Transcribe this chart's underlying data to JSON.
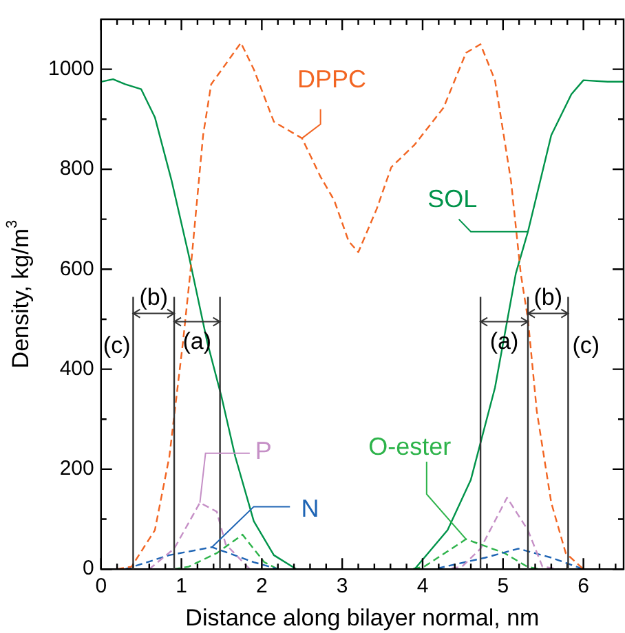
{
  "chart_data": {
    "type": "line",
    "xlabel": "Distance along bilayer normal, nm",
    "ylabel": "Density, kg/m$^{3}$",
    "xlim": [
      0,
      6.5
    ],
    "ylim": [
      0,
      1100
    ],
    "xticks": [
      0,
      {
        "value": 0.2,
        "label": null
      },
      {
        "value": 0.4,
        "label": null
      },
      {
        "value": 0.6,
        "label": null
      },
      {
        "value": 0.8,
        "label": null
      },
      1,
      {
        "value": 1.2,
        "label": null
      },
      {
        "value": 1.4,
        "label": null
      },
      {
        "value": 1.6,
        "label": null
      },
      {
        "value": 1.8,
        "label": null
      },
      2,
      {
        "value": 2.2,
        "label": null
      },
      {
        "value": 2.4,
        "label": null
      },
      {
        "value": 2.6,
        "label": null
      },
      {
        "value": 2.8,
        "label": null
      },
      3,
      {
        "value": 3.2,
        "label": null
      },
      {
        "value": 3.4,
        "label": null
      },
      {
        "value": 3.6,
        "label": null
      },
      {
        "value": 3.8,
        "label": null
      },
      4,
      {
        "value": 4.2,
        "label": null
      },
      {
        "value": 4.4,
        "label": null
      },
      {
        "value": 4.6,
        "label": null
      },
      {
        "value": 4.8,
        "label": null
      },
      5,
      {
        "value": 5.2,
        "label": null
      },
      {
        "value": 5.4,
        "label": null
      },
      {
        "value": 5.6,
        "label": null
      },
      {
        "value": 5.8,
        "label": null
      },
      6,
      {
        "value": 6.2,
        "label": null
      },
      {
        "value": 6.4,
        "label": null
      }
    ],
    "yticks": [
      0,
      {
        "value": 100,
        "label": null
      },
      200,
      {
        "value": 300,
        "label": null
      },
      400,
      {
        "value": 500,
        "label": null
      },
      600,
      {
        "value": 700,
        "label": null
      },
      800,
      {
        "value": 900,
        "label": null
      },
      1000
    ],
    "grid": false,
    "legend": false,
    "series": [
      {
        "name": "DPPC",
        "color": "#f26522",
        "line_style": "dashed",
        "x": [
          0.2,
          0.38,
          0.67,
          0.85,
          1.02,
          1.11,
          1.27,
          1.37,
          1.55,
          1.74,
          1.9,
          2.15,
          2.5,
          2.73,
          2.9,
          3.08,
          3.2,
          3.43,
          3.61,
          3.9,
          4.26,
          4.54,
          4.72,
          4.9,
          5.1,
          5.22,
          5.31,
          5.42,
          5.6,
          5.78,
          6.0
        ],
        "values": [
          0,
          5,
          78,
          225,
          455,
          592,
          868,
          970,
          1010,
          1053,
          1000,
          895,
          862,
          785,
          738,
          656,
          634,
          721,
          804,
          849,
          923,
          1033,
          1050,
          978,
          776,
          592,
          500,
          316,
          133,
          32,
          0
        ]
      },
      {
        "name": "SOL",
        "color": "#00934a",
        "line_style": "solid",
        "x": [
          0,
          0.15,
          0.3,
          0.5,
          0.67,
          0.88,
          1.09,
          1.32,
          1.5,
          1.67,
          1.9,
          2.15,
          2.43,
          3.9,
          4.31,
          4.6,
          4.9,
          5.16,
          5.31,
          5.6,
          5.85,
          6.0,
          6.3,
          6.5
        ],
        "values": [
          975,
          980,
          970,
          960,
          904,
          776,
          629,
          455,
          344,
          225,
          96,
          28,
          0,
          0,
          78,
          179,
          363,
          592,
          675,
          868,
          950,
          978,
          975,
          975
        ]
      },
      {
        "name": "P",
        "color": "#c58fc6",
        "line_style": "dashed",
        "x": [
          0.6,
          0.91,
          1.23,
          1.44,
          1.55,
          1.85,
          4.3,
          4.49,
          4.72,
          5.05,
          5.31,
          5.49,
          5.7
        ],
        "values": [
          0,
          41,
          133,
          115,
          50,
          0,
          0,
          5,
          41,
          143,
          78,
          5,
          0
        ]
      },
      {
        "name": "N",
        "color": "#1e64b4",
        "line_style": "dashed",
        "x": [
          0.3,
          0.85,
          1.38,
          1.9,
          2.2,
          4.14,
          4.78,
          5.19,
          5.6,
          6.0
        ],
        "values": [
          0,
          28,
          44,
          14,
          0,
          0,
          23,
          41,
          23,
          0
        ]
      },
      {
        "name": "O-ester",
        "color": "#2db34a",
        "line_style": "dashed",
        "x": [
          0.9,
          1.09,
          1.44,
          1.76,
          2.03,
          2.2,
          3.85,
          4.02,
          4.54,
          5.02,
          5.3,
          5.45
        ],
        "values": [
          0,
          5,
          32,
          69,
          14,
          0,
          0,
          5,
          60,
          32,
          5,
          0
        ]
      }
    ],
    "ref_lines": [
      {
        "axis": "x",
        "value": 0.4,
        "label": "(c)",
        "color": "#333333"
      },
      {
        "axis": "x",
        "value": 0.91,
        "label": "(b)",
        "color": "#333333"
      },
      {
        "axis": "x",
        "value": 1.48,
        "label": "(a)",
        "color": "#333333"
      },
      {
        "axis": "x",
        "value": 4.72,
        "label": "(a)",
        "color": "#333333"
      },
      {
        "axis": "x",
        "value": 5.31,
        "label": "(b)",
        "color": "#333333"
      },
      {
        "axis": "x",
        "value": 5.81,
        "label": "(c)",
        "color": "#333333"
      }
    ]
  }
}
